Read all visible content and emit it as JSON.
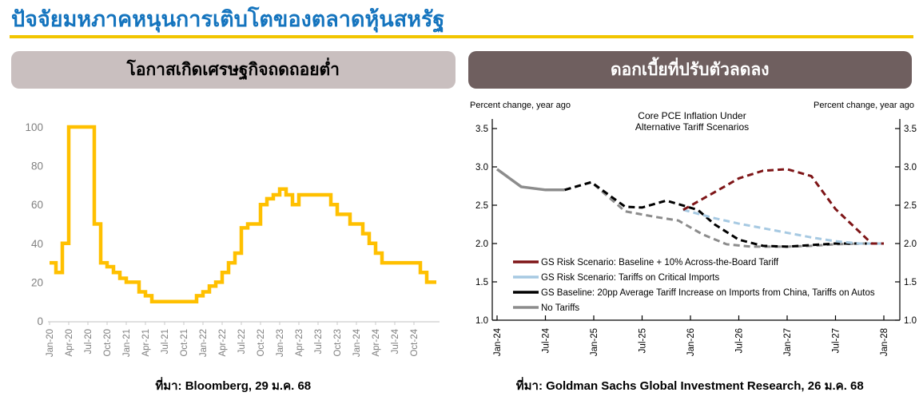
{
  "page": {
    "title": "ปัจจัยมหภาคหนุนการเติบโตของตลาดหุ้นสหรัฐ",
    "title_color": "#1474BE",
    "underline_color": "#F2C500"
  },
  "left_panel": {
    "header": "โอกาสเกิดเศรษฐกิจถดถอยต่ำ",
    "header_bg": "#C9BFBF",
    "source": "ที่มา: Bloomberg, 29 ม.ค. 68"
  },
  "right_panel": {
    "header": "ดอกเบี้ยที่ปรับตัวลดลง",
    "header_bg": "#6F5F5F",
    "source": "ที่มา: Goldman Sachs Global Investment Research, 26 ม.ค. 68"
  },
  "chart_data": [
    {
      "type": "line",
      "name": "us-recession-probability",
      "step": true,
      "line_color": "#FFC000",
      "axis_text_color": "#808080",
      "ylim": [
        0,
        100
      ],
      "yticks": [
        0,
        20,
        40,
        60,
        80,
        100
      ],
      "x_tick_every": 3,
      "x_tick_labels": [
        "Jan-20",
        "Apr-20",
        "Jul-20",
        "Oct-20",
        "Jan-21",
        "Apr-21",
        "Jul-21",
        "Oct-21",
        "Jan-22",
        "Apr-22",
        "Jul-22",
        "Oct-22",
        "Jan-23",
        "Apr-23",
        "Jul-23",
        "Oct-23",
        "Jan-24",
        "Apr-24",
        "Jul-24",
        "Oct-24"
      ],
      "categories_note": "monthly values Jan-20 through Dec-24",
      "values": [
        30,
        25,
        40,
        100,
        100,
        100,
        100,
        50,
        30,
        28,
        25,
        22,
        20,
        20,
        15,
        13,
        10,
        10,
        10,
        10,
        10,
        10,
        10,
        13,
        15,
        18,
        20,
        25,
        30,
        35,
        48,
        50,
        50,
        60,
        63,
        65,
        68,
        65,
        60,
        65,
        65,
        65,
        65,
        65,
        60,
        55,
        55,
        50,
        50,
        45,
        40,
        35,
        30,
        30,
        30,
        30,
        30,
        30,
        25,
        20
      ]
    },
    {
      "type": "line",
      "name": "core-pce-tariff-scenarios",
      "title_line1": "Core PCE Inflation Under",
      "title_line2": "Alternative Tariff Scenarios",
      "ylabel_left": "Percent change, year ago",
      "ylabel_right": "Percent change, year ago",
      "ylim": [
        1.0,
        3.5
      ],
      "yticks": [
        1.0,
        1.5,
        2.0,
        2.5,
        3.0,
        3.5
      ],
      "x_tick_labels": [
        "Jan-24",
        "Jul-24",
        "Jan-25",
        "Jul-25",
        "Jan-26",
        "Jul-26",
        "Jan-27",
        "Jul-27",
        "Jan-28"
      ],
      "x_units_note": "x in quarters since Jan-24 (0..16)",
      "series": [
        {
          "label": "GS Risk Scenario: Baseline + 10% Across-the-Board Tariff",
          "color": "#7E1517",
          "dash": true,
          "legend": true,
          "x": [
            7.7,
            9,
            10,
            11,
            12,
            13,
            14,
            15.5,
            16
          ],
          "y": [
            2.44,
            2.67,
            2.85,
            2.95,
            2.97,
            2.88,
            2.45,
            2.0,
            2.0
          ]
        },
        {
          "label": "GS Risk Scenario: Tariffs on Critical Imports",
          "color": "#A6C9E2",
          "dash": true,
          "legend": true,
          "x": [
            7.7,
            9,
            10,
            11,
            12,
            13,
            14,
            15,
            16
          ],
          "y": [
            2.44,
            2.33,
            2.26,
            2.2,
            2.14,
            2.08,
            2.03,
            2.0,
            2.0
          ]
        },
        {
          "label": "GS Baseline: 20pp Average Tariff Increase on Imports from China, Tariffs on Autos",
          "color": "#000000",
          "dash": true,
          "legend": true,
          "x": [
            2.8,
            3.9,
            5.3,
            6,
            7,
            8.3,
            9,
            10,
            11,
            12,
            13,
            14,
            15,
            16
          ],
          "y": [
            2.7,
            2.8,
            2.48,
            2.47,
            2.56,
            2.44,
            2.25,
            2.05,
            1.97,
            1.96,
            1.98,
            2.0,
            2.0,
            2.0
          ]
        },
        {
          "label": "No Tariffs",
          "color": "#8C8C8C",
          "dash": true,
          "legend": true,
          "x": [
            2.8,
            3.9,
            5.3,
            6.5,
            7.5,
            8.5,
            9.5,
            10.5,
            11,
            12,
            13,
            14,
            15,
            16
          ],
          "y": [
            2.7,
            2.8,
            2.42,
            2.35,
            2.3,
            2.12,
            1.99,
            1.96,
            1.96,
            1.96,
            1.97,
            1.99,
            2.0,
            2.0
          ]
        },
        {
          "label": "history",
          "color": "#8C8C8C",
          "dash": false,
          "legend": false,
          "x": [
            0,
            1,
            2,
            2.8
          ],
          "y": [
            2.97,
            2.74,
            2.7,
            2.7
          ]
        }
      ]
    }
  ]
}
